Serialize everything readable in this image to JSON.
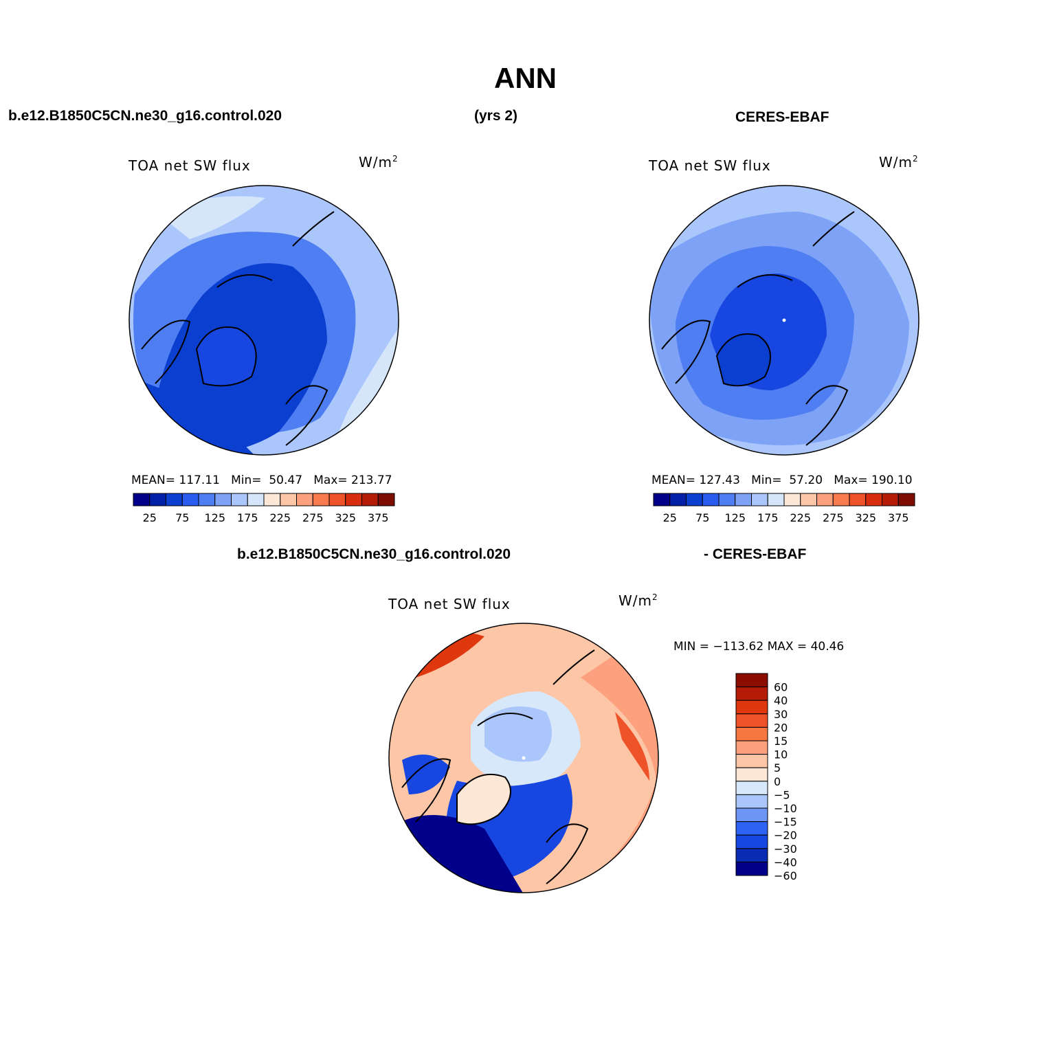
{
  "page": {
    "title": "ANN",
    "left_case": "b.e12.B1850C5CN.ne30_g16.control.020",
    "years": "(yrs 2)",
    "right_case": "CERES-EBAF",
    "diff_case": "b.e12.B1850C5CN.ne30_g16.control.020",
    "diff_minus": "- CERES-EBAF"
  },
  "panels": [
    {
      "variable": "TOA net SW flux",
      "units_base": "W/m",
      "units_exp": "2",
      "mean_label": "MEAN=",
      "mean": "117.11",
      "min_label": "Min=",
      "min": "50.47",
      "max_label": "Max=",
      "max": "213.77"
    },
    {
      "variable": "TOA net SW flux",
      "units_base": "W/m",
      "units_exp": "2",
      "mean_label": "MEAN=",
      "mean": "127.43",
      "min_label": "Min=",
      "min": "57.20",
      "max_label": "Max=",
      "max": "190.10"
    },
    {
      "variable": "TOA net SW flux",
      "units_base": "W/m",
      "units_exp": "2",
      "minmax": "MIN = −113.62 MAX =  40.46"
    }
  ],
  "colorbar_abs": {
    "colors": [
      "#00008b",
      "#0020a8",
      "#0a3fd0",
      "#2a5cf0",
      "#4f7ef2",
      "#7ea2f5",
      "#aac6fb",
      "#d5e6fb",
      "#fde7d6",
      "#fcc6a7",
      "#fca07d",
      "#f87a4f",
      "#ee5228",
      "#d82e0f",
      "#b51c08",
      "#7d0d00"
    ],
    "labels": [
      "25",
      "75",
      "125",
      "175",
      "225",
      "275",
      "325",
      "375"
    ]
  },
  "colorbar_diff": {
    "colors": [
      "#00008b",
      "#0a2cb4",
      "#1846e0",
      "#2e62f2",
      "#6d95f4",
      "#aac6fb",
      "#d8e8fb",
      "#fde7d6",
      "#fcc6a7",
      "#fca07d",
      "#f8763f",
      "#ee5228",
      "#e0380e",
      "#b51c08",
      "#8b0d00"
    ],
    "labels": [
      "60",
      "40",
      "30",
      "20",
      "15",
      "10",
      "5",
      "0",
      "−5",
      "−10",
      "−15",
      "−20",
      "−30",
      "−40",
      "−60"
    ]
  },
  "map_colors": {
    "deep": "#0a35d0",
    "mid": "#2a5cf0",
    "light": "#7ea2f5",
    "pale": "#aac6fb",
    "verypale": "#d5e6fb",
    "warm": "#fca07d",
    "hot": "#ee5228",
    "navy": "#00008b"
  }
}
